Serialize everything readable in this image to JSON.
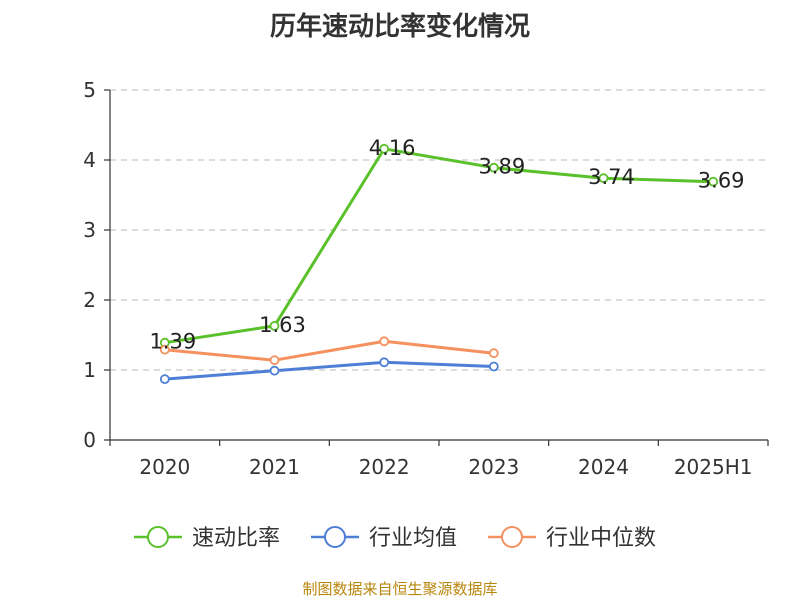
{
  "chart_data": {
    "type": "line",
    "title": "历年速动比率变化情况",
    "categories": [
      "2020",
      "2021",
      "2022",
      "2023",
      "2024",
      "2025H1"
    ],
    "yticks": [
      "0",
      "1",
      "2",
      "3",
      "4",
      "5"
    ],
    "ylim": [
      0,
      5
    ],
    "grid": true,
    "legend_position": "bottom",
    "series": [
      {
        "name": "速动比率",
        "color": "#5ac12b",
        "values": [
          1.39,
          1.63,
          4.16,
          3.89,
          3.74,
          3.69
        ],
        "labels": [
          "1.39",
          "1.63",
          "4.16",
          "3.89",
          "3.74",
          "3.69"
        ]
      },
      {
        "name": "行业均值",
        "color": "#4e7fd6",
        "values": [
          0.87,
          0.99,
          1.11,
          1.05,
          null,
          null
        ]
      },
      {
        "name": "行业中位数",
        "color": "#f5915f",
        "values": [
          1.29,
          1.14,
          1.41,
          1.24,
          null,
          null
        ]
      }
    ]
  },
  "source": "制图数据来自恒生聚源数据库"
}
